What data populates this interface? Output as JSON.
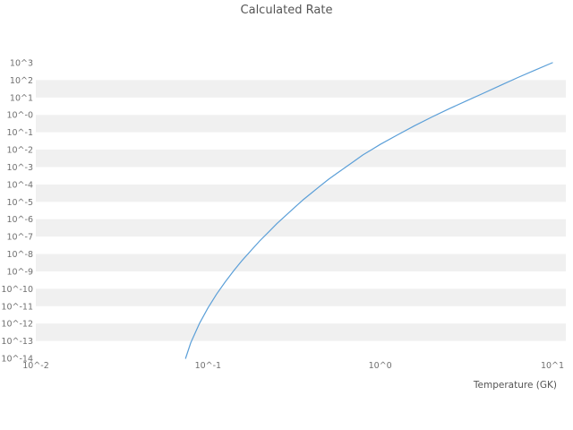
{
  "chart_data": {
    "type": "line",
    "title": "Calculated Rate",
    "xlabel": "Temperature (GK)",
    "ylabel": "",
    "x_scale": "log",
    "y_scale": "log",
    "x_log_range": [
      -2,
      1
    ],
    "y_log_range": [
      -14,
      3
    ],
    "x_tick_labels": [
      "10^-2",
      "10^-1",
      "10^0",
      "10^1"
    ],
    "x_tick_log": [
      -2,
      -1,
      0,
      1
    ],
    "y_tick_labels": [
      "10^3",
      "10^2",
      "10^1",
      "10^-0",
      "10^-1",
      "10^-2",
      "10^-3",
      "10^-4",
      "10^-5",
      "10^-6",
      "10^-7",
      "10^-8",
      "10^-9",
      "10^-10",
      "10^-11",
      "10^-12",
      "10^-13",
      "10^-14"
    ],
    "grid": "alternating-horizontal-bands",
    "legend": "none",
    "colors": {
      "line": "#5b9fd8",
      "band": "#f0f0f0",
      "tick_text": "#707070",
      "title_text": "#555555",
      "background": "#ffffff"
    },
    "series": [
      {
        "name": "Calculated Rate",
        "points_log10": [
          [
            -1.13,
            -14.0
          ],
          [
            -1.1,
            -13.1
          ],
          [
            -1.05,
            -12.0
          ],
          [
            -1.0,
            -11.1
          ],
          [
            -0.95,
            -10.3
          ],
          [
            -0.9,
            -9.6
          ],
          [
            -0.85,
            -8.95
          ],
          [
            -0.8,
            -8.35
          ],
          [
            -0.75,
            -7.8
          ],
          [
            -0.7,
            -7.25
          ],
          [
            -0.65,
            -6.75
          ],
          [
            -0.6,
            -6.25
          ],
          [
            -0.55,
            -5.8
          ],
          [
            -0.5,
            -5.35
          ],
          [
            -0.45,
            -4.9
          ],
          [
            -0.4,
            -4.5
          ],
          [
            -0.35,
            -4.1
          ],
          [
            -0.3,
            -3.7
          ],
          [
            -0.25,
            -3.35
          ],
          [
            -0.2,
            -3.0
          ],
          [
            -0.15,
            -2.65
          ],
          [
            -0.1,
            -2.3
          ],
          [
            -0.05,
            -2.0
          ],
          [
            0.0,
            -1.7
          ],
          [
            0.1,
            -1.15
          ],
          [
            0.2,
            -0.62
          ],
          [
            0.3,
            -0.12
          ],
          [
            0.4,
            0.35
          ],
          [
            0.5,
            0.8
          ],
          [
            0.6,
            1.25
          ],
          [
            0.7,
            1.7
          ],
          [
            0.8,
            2.15
          ],
          [
            0.9,
            2.58
          ],
          [
            1.0,
            3.0
          ]
        ]
      }
    ]
  }
}
